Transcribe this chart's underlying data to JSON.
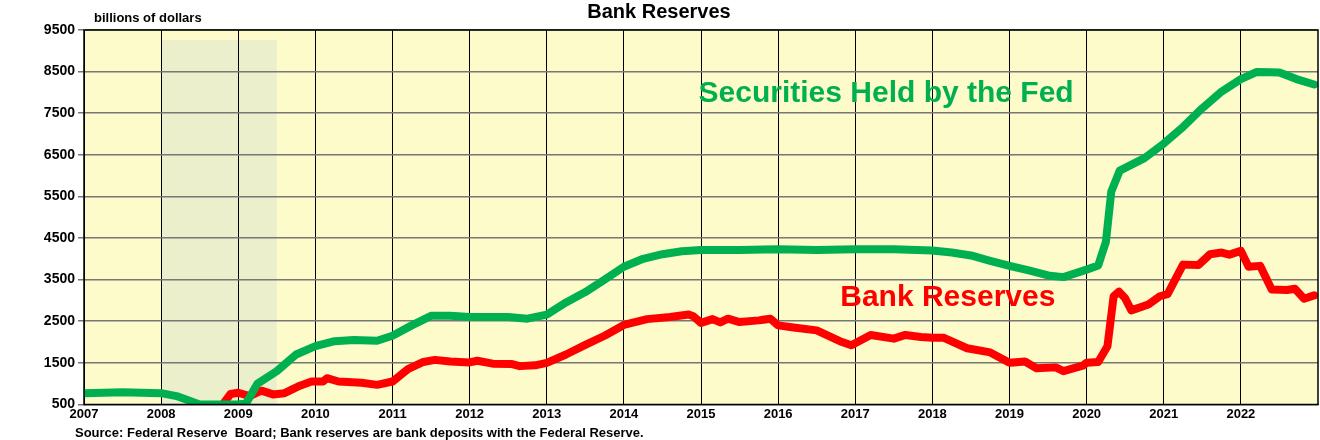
{
  "chart_data": {
    "type": "line",
    "title": "Bank Reserves",
    "ylabel": "billions of dollars",
    "annotations": [
      "Source: Federal Reserve  Board; Bank reserves are bank deposits with the Federal Reserve."
    ],
    "xlim": [
      2007,
      2023
    ],
    "xticks": [
      2007,
      2008,
      2009,
      2010,
      2011,
      2012,
      2013,
      2014,
      2015,
      2016,
      2017,
      2018,
      2019,
      2020,
      2021,
      2022
    ],
    "ylim": [
      500,
      9500
    ],
    "yticks": [
      500,
      1500,
      2500,
      3500,
      4500,
      5500,
      6500,
      7500,
      8500,
      9500
    ],
    "grid": true,
    "legend": false,
    "bands": [
      {
        "axis": "x",
        "from": 2008.0,
        "to": 2009.5,
        "color": "#ebefcb"
      }
    ],
    "series": [
      {
        "name": "Securities Held by the Fed",
        "color": "#00b050",
        "x": [
          2007.0,
          2007.5,
          2008.0,
          2008.2,
          2008.35,
          2008.5,
          2009.0,
          2009.1,
          2009.25,
          2009.5,
          2009.75,
          2010.0,
          2010.25,
          2010.5,
          2010.8,
          2011.0,
          2011.25,
          2011.5,
          2011.75,
          2012.0,
          2012.5,
          2012.75,
          2013.0,
          2013.25,
          2013.5,
          2013.75,
          2014.0,
          2014.25,
          2014.5,
          2014.75,
          2015.0,
          2015.5,
          2016.0,
          2016.5,
          2017.0,
          2017.5,
          2018.0,
          2018.25,
          2018.5,
          2018.75,
          2019.0,
          2019.25,
          2019.5,
          2019.7,
          2019.9,
          2020.0,
          2020.15,
          2020.25,
          2020.32,
          2020.43,
          2020.75,
          2021.0,
          2021.25,
          2021.5,
          2021.75,
          2022.0,
          2022.2,
          2022.5,
          2022.72,
          2022.95
        ],
        "values": [
          770,
          790,
          770,
          700,
          600,
          500,
          500,
          520,
          1000,
          1300,
          1700,
          1900,
          2020,
          2050,
          2030,
          2150,
          2400,
          2630,
          2630,
          2600,
          2600,
          2560,
          2660,
          2950,
          3200,
          3500,
          3810,
          4000,
          4110,
          4180,
          4210,
          4210,
          4230,
          4210,
          4230,
          4230,
          4200,
          4150,
          4080,
          3950,
          3830,
          3720,
          3600,
          3560,
          3680,
          3740,
          3840,
          4410,
          5620,
          6120,
          6420,
          6770,
          7170,
          7620,
          8020,
          8320,
          8490,
          8480,
          8320,
          8190
        ]
      },
      {
        "name": "Bank Reserves",
        "color": "#ff0000",
        "x": [
          2008.8,
          2008.9,
          2009.0,
          2009.15,
          2009.3,
          2009.45,
          2009.6,
          2009.8,
          2009.95,
          2010.1,
          2010.15,
          2010.3,
          2010.6,
          2010.8,
          2011.0,
          2011.2,
          2011.4,
          2011.55,
          2011.75,
          2012.0,
          2012.1,
          2012.3,
          2012.55,
          2012.65,
          2012.85,
          2013.0,
          2013.25,
          2013.5,
          2013.75,
          2014.0,
          2014.3,
          2014.6,
          2014.84,
          2014.9,
          2015.0,
          2015.15,
          2015.25,
          2015.35,
          2015.5,
          2015.75,
          2015.9,
          2016.0,
          2016.2,
          2016.5,
          2016.8,
          2016.95,
          2017.2,
          2017.5,
          2017.65,
          2017.85,
          2018.0,
          2018.15,
          2018.45,
          2018.75,
          2019.0,
          2019.2,
          2019.35,
          2019.6,
          2019.7,
          2019.95,
          2020.0,
          2020.15,
          2020.27,
          2020.35,
          2020.42,
          2020.5,
          2020.58,
          2020.8,
          2020.95,
          2021.05,
          2021.25,
          2021.45,
          2021.6,
          2021.75,
          2021.85,
          2022.0,
          2022.1,
          2022.25,
          2022.4,
          2022.6,
          2022.7,
          2022.82,
          2022.95
        ],
        "values": [
          500,
          750,
          780,
          700,
          830,
          740,
          770,
          950,
          1050,
          1050,
          1130,
          1050,
          1020,
          970,
          1050,
          1350,
          1520,
          1570,
          1530,
          1510,
          1550,
          1480,
          1470,
          1420,
          1440,
          1500,
          1700,
          1930,
          2150,
          2410,
          2550,
          2600,
          2660,
          2620,
          2460,
          2550,
          2470,
          2560,
          2480,
          2520,
          2560,
          2400,
          2350,
          2280,
          2020,
          1920,
          2170,
          2080,
          2170,
          2120,
          2100,
          2100,
          1850,
          1750,
          1500,
          1530,
          1370,
          1390,
          1300,
          1430,
          1500,
          1520,
          1900,
          3100,
          3210,
          3050,
          2760,
          2900,
          3100,
          3150,
          3860,
          3850,
          4110,
          4150,
          4100,
          4190,
          3810,
          3830,
          3260,
          3250,
          3280,
          3040,
          3120
        ]
      }
    ]
  }
}
